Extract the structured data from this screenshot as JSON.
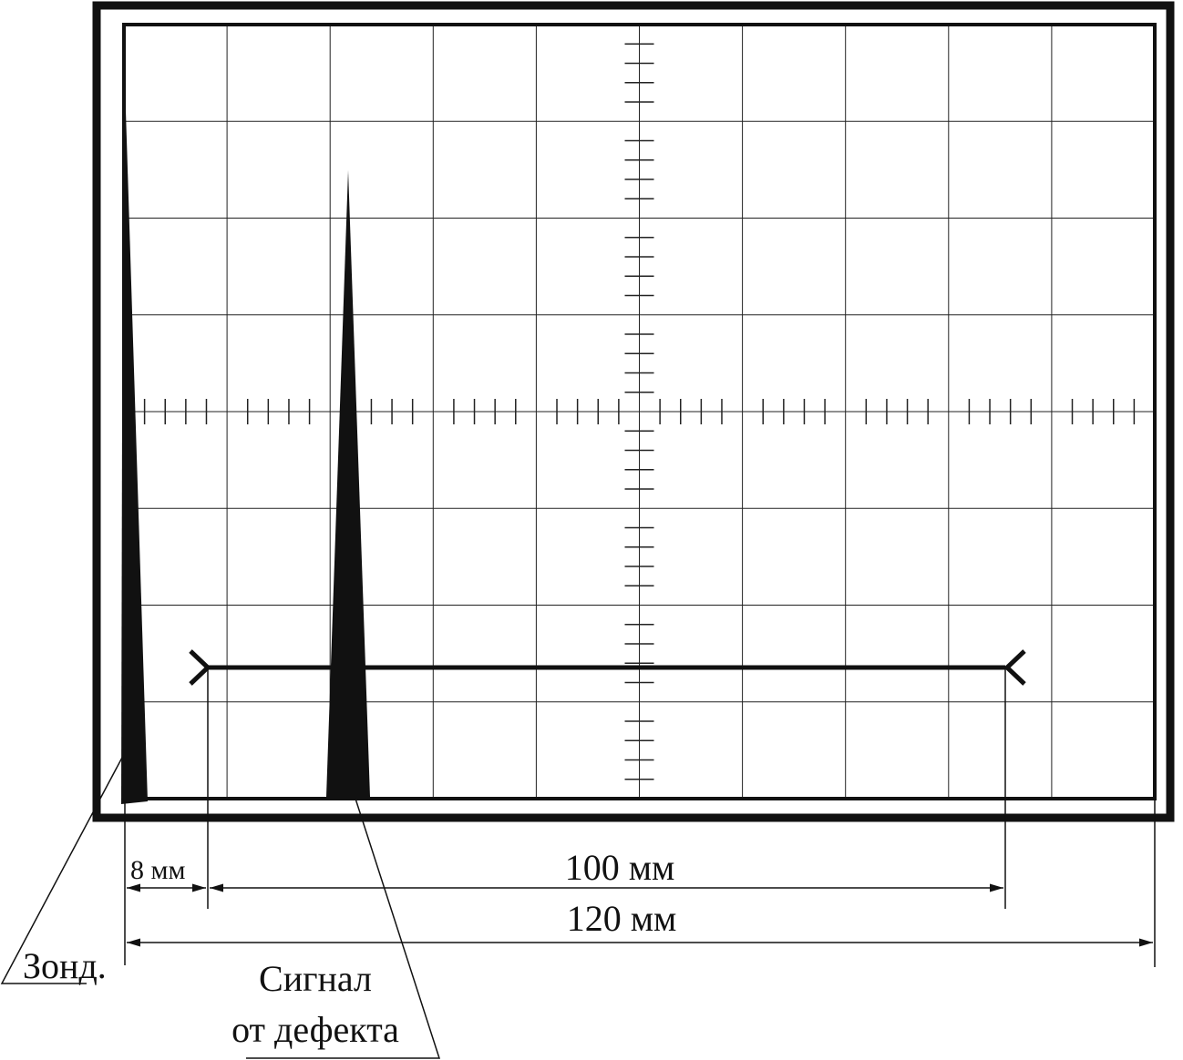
{
  "dimensions": {
    "probe_offset": "8 мм",
    "bracket_length": "100 мм",
    "total_length": "120 мм"
  },
  "labels": {
    "probe": "Зонд.",
    "defect_line1": "Сигнал",
    "defect_line2": "от дефекта"
  }
}
